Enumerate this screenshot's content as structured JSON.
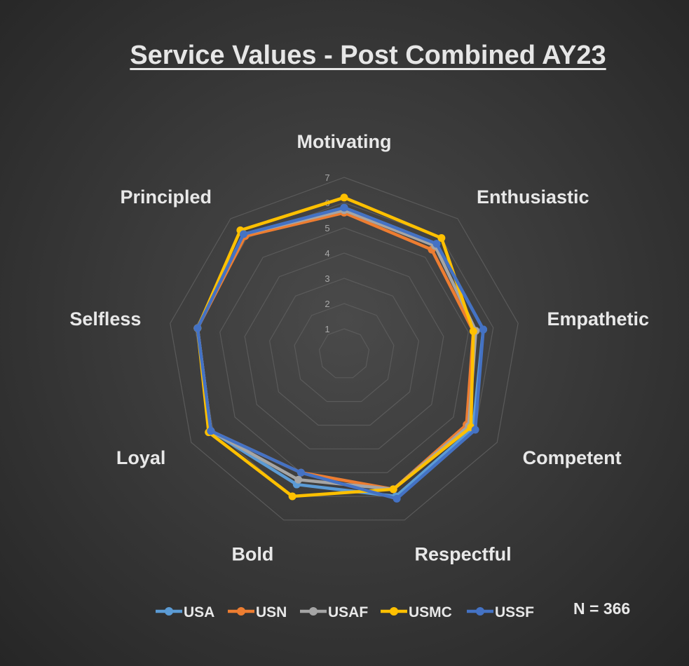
{
  "chart_data": {
    "type": "radar",
    "title": "Service Values - Post Combined AY23",
    "categories": [
      "Motivating",
      "Enthusiastic",
      "Empathetic",
      "Competent",
      "Respectful",
      "Bold",
      "Loyal",
      "Selfless",
      "Principled"
    ],
    "rmin": 0,
    "rmax": 7,
    "ticks": [
      "1",
      "2",
      "3",
      "4",
      "5",
      "6",
      "7"
    ],
    "grid": true,
    "legend_position": "bottom",
    "series": [
      {
        "name": "USA",
        "color": "#5b9bd5",
        "values": [
          5.8,
          5.7,
          5.6,
          5.9,
          6.0,
          5.5,
          6.1,
          5.9,
          6.2
        ]
      },
      {
        "name": "USN",
        "color": "#ed7d31",
        "values": [
          5.6,
          5.4,
          5.2,
          5.6,
          5.7,
          5.0,
          6.1,
          5.9,
          6.1
        ]
      },
      {
        "name": "USAF",
        "color": "#a5a5a5",
        "values": [
          5.7,
          5.6,
          5.3,
          5.7,
          5.7,
          5.3,
          6.1,
          5.9,
          6.2
        ]
      },
      {
        "name": "USMC",
        "color": "#ffc000",
        "values": [
          6.2,
          6.0,
          5.2,
          5.8,
          5.7,
          6.0,
          6.2,
          5.9,
          6.4
        ]
      },
      {
        "name": "USSF",
        "color": "#4472c4",
        "values": [
          5.8,
          5.7,
          5.6,
          6.0,
          6.1,
          5.0,
          6.1,
          5.9,
          6.2
        ]
      }
    ],
    "annotation": "N = 366"
  }
}
